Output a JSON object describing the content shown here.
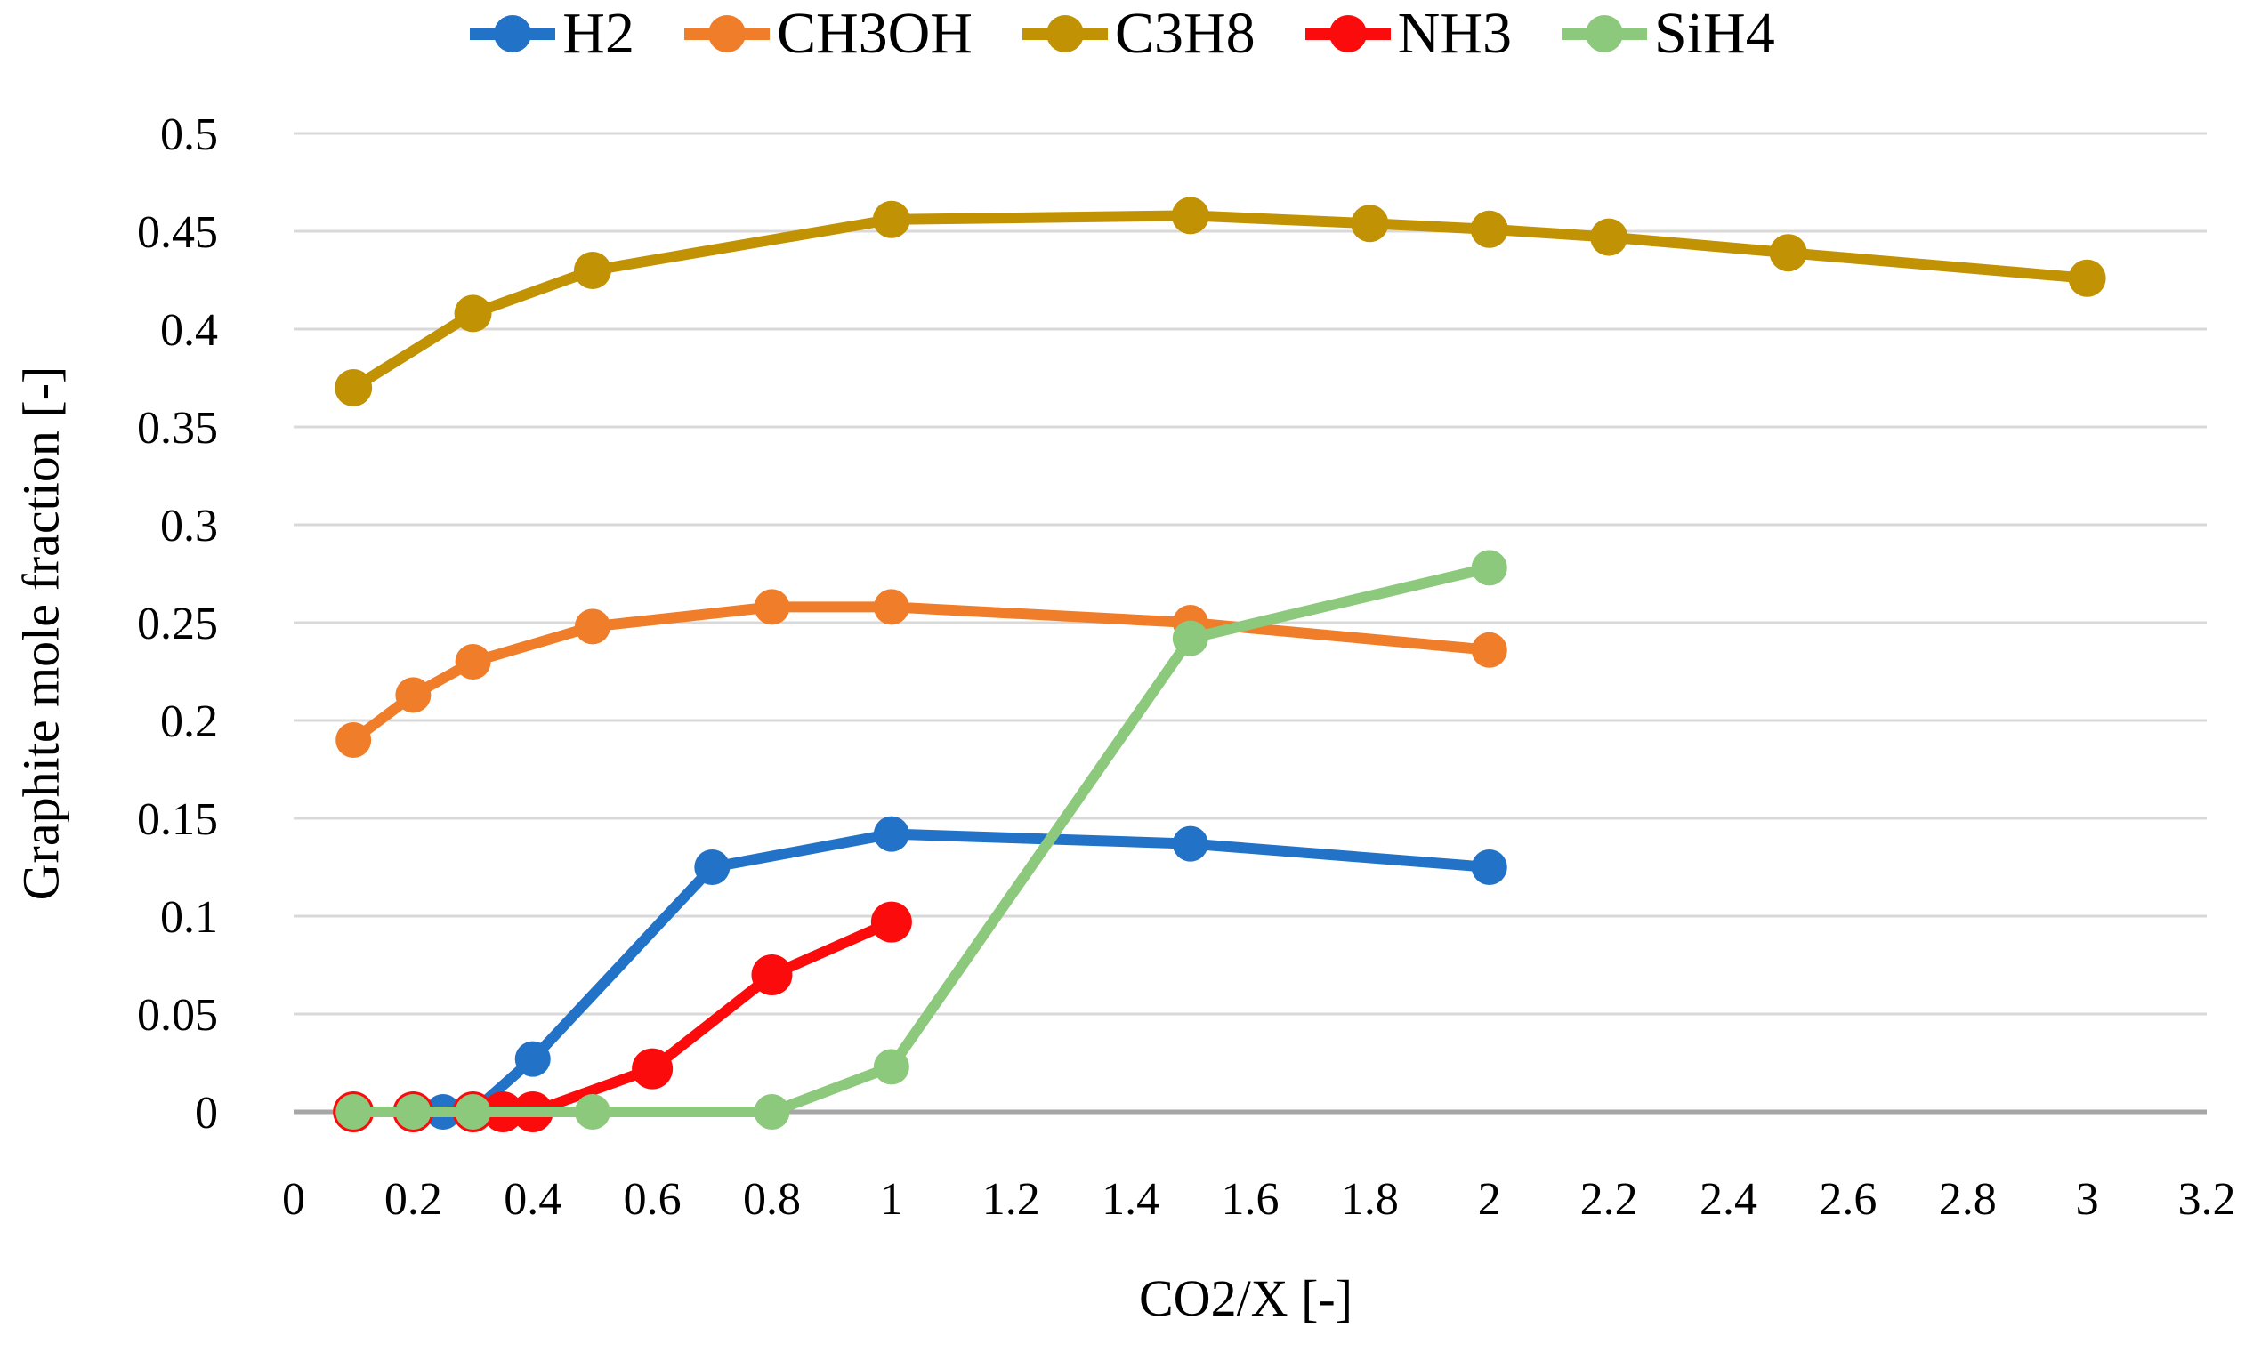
{
  "chart_data": {
    "type": "line",
    "title": "",
    "legend_position": "top",
    "grid": "horizontal",
    "x_axis": {
      "label": "CO2/X [-]",
      "min": 0,
      "max": 3.2,
      "tick_labels": [
        "0",
        "0.2",
        "0.4",
        "0.6",
        "0.8",
        "1",
        "1.2",
        "1.4",
        "1.6",
        "1.8",
        "2",
        "2.2",
        "2.4",
        "2.6",
        "2.8",
        "3",
        "3.2"
      ]
    },
    "y_axis": {
      "label": "Graphite mole fraction [-]",
      "min": 0,
      "max": 0.5,
      "tick_labels": [
        "0",
        "0.05",
        "0.1",
        "0.15",
        "0.2",
        "0.25",
        "0.3",
        "0.35",
        "0.4",
        "0.45",
        "0.5"
      ]
    },
    "series": [
      {
        "name": "H2",
        "color": "#2272C8",
        "marker_r": 20,
        "points": [
          [
            0.1,
            0
          ],
          [
            0.2,
            0
          ],
          [
            0.25,
            0
          ],
          [
            0.3,
            0
          ],
          [
            0.4,
            0.027
          ],
          [
            0.7,
            0.125
          ],
          [
            1,
            0.142
          ],
          [
            1.5,
            0.137
          ],
          [
            2,
            0.125
          ]
        ]
      },
      {
        "name": "CH3OH",
        "color": "#F07D29",
        "marker_r": 20,
        "points": [
          [
            0.1,
            0.19
          ],
          [
            0.2,
            0.213
          ],
          [
            0.3,
            0.23
          ],
          [
            0.5,
            0.248
          ],
          [
            0.8,
            0.258
          ],
          [
            1,
            0.258
          ],
          [
            1.5,
            0.25
          ],
          [
            2,
            0.236
          ]
        ]
      },
      {
        "name": "C3H8",
        "color": "#C09204",
        "marker_r": 21,
        "points": [
          [
            0.1,
            0.37
          ],
          [
            0.3,
            0.408
          ],
          [
            0.5,
            0.43
          ],
          [
            1,
            0.456
          ],
          [
            1.5,
            0.458
          ],
          [
            1.8,
            0.454
          ],
          [
            2,
            0.451
          ],
          [
            2.2,
            0.447
          ],
          [
            2.5,
            0.439
          ],
          [
            3,
            0.426
          ]
        ]
      },
      {
        "name": "NH3",
        "color": "#FB0B0B",
        "marker_r": 23,
        "points": [
          [
            0.1,
            0
          ],
          [
            0.2,
            0
          ],
          [
            0.3,
            0
          ],
          [
            0.35,
            0
          ],
          [
            0.4,
            0
          ],
          [
            0.6,
            0.022
          ],
          [
            0.8,
            0.07
          ],
          [
            1,
            0.097
          ]
        ]
      },
      {
        "name": "SiH4",
        "color": "#8DC97D",
        "marker_r": 20,
        "points": [
          [
            0.1,
            0
          ],
          [
            0.2,
            0
          ],
          [
            0.3,
            0
          ],
          [
            0.5,
            0
          ],
          [
            0.8,
            0
          ],
          [
            1,
            0.023
          ],
          [
            1.5,
            0.242
          ],
          [
            2,
            0.278
          ]
        ]
      }
    ],
    "colors": {
      "gridline": "#D9D9D9",
      "axis_line": "#A6A6A6",
      "text": "#000000"
    }
  }
}
